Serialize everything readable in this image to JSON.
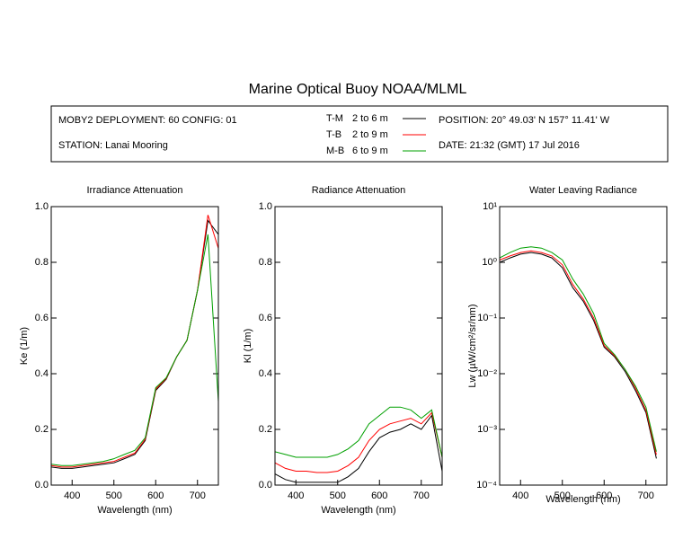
{
  "title": "Marine Optical Buoy NOAA/MLML",
  "info": {
    "deployment": "MOBY2 DEPLOYMENT: 60 CONFIG: 01",
    "station": "STATION: Lanai Mooring",
    "position": "POSITION: 20° 49.03' N   157° 11.41' W",
    "date": "DATE: 21:32 (GMT) 17 Jul 2016"
  },
  "chart_data": [
    {
      "type": "line",
      "title": "Irradiance Attenuation",
      "x_label": "Wavelength (nm)",
      "y_label": "Ke  (1/m)",
      "x": [
        350,
        375,
        400,
        425,
        450,
        475,
        500,
        525,
        550,
        575,
        600,
        625,
        650,
        675,
        700,
        725,
        750
      ],
      "xlim": [
        350,
        750
      ],
      "xticks": [
        400,
        500,
        600,
        700
      ],
      "ylim": [
        0,
        1
      ],
      "yticks": [
        {
          "value": 0,
          "label": "0.0"
        },
        0.2,
        0.4,
        0.6,
        0.8,
        {
          "value": 1,
          "label": "1.0"
        }
      ],
      "series": [
        {
          "name": "T-M",
          "depth": "2 to 6  m",
          "color": "#000000",
          "values": [
            0.065,
            0.06,
            0.06,
            0.065,
            0.07,
            0.075,
            0.08,
            0.095,
            0.11,
            0.16,
            0.34,
            0.38,
            0.46,
            0.52,
            0.7,
            0.95,
            0.9
          ]
        },
        {
          "name": "T-B",
          "depth": "2 to 9  m",
          "color": "#ff0000",
          "values": [
            0.07,
            0.065,
            0.065,
            0.07,
            0.075,
            0.08,
            0.085,
            0.1,
            0.115,
            0.165,
            0.345,
            0.383,
            0.46,
            0.52,
            0.7,
            0.97,
            0.85
          ]
        },
        {
          "name": "M-B",
          "depth": "6 to 9  m",
          "color": "#00a000",
          "values": [
            0.075,
            0.07,
            0.07,
            0.075,
            0.08,
            0.085,
            0.095,
            0.11,
            0.125,
            0.17,
            0.35,
            0.385,
            0.46,
            0.52,
            0.7,
            0.9,
            0.3
          ]
        }
      ]
    },
    {
      "type": "line",
      "title": "Radiance Attenuation",
      "x_label": "Wavelength (nm)",
      "y_label": "Kl  (1/m)",
      "x": [
        350,
        375,
        400,
        425,
        450,
        475,
        500,
        525,
        550,
        575,
        600,
        625,
        650,
        675,
        700,
        725,
        750
      ],
      "xlim": [
        350,
        750
      ],
      "xticks": [
        400,
        500,
        600,
        700
      ],
      "ylim": [
        0,
        1
      ],
      "yticks": [
        {
          "value": 0,
          "label": "0.0"
        },
        0.2,
        0.4,
        0.6,
        0.8,
        {
          "value": 1,
          "label": "1.0"
        }
      ],
      "series": [
        {
          "name": "T-M",
          "color": "#000000",
          "values": [
            0.04,
            0.02,
            0.01,
            0.01,
            0.01,
            0.01,
            0.01,
            0.03,
            0.06,
            0.12,
            0.17,
            0.19,
            0.2,
            0.22,
            0.2,
            0.25,
            0.05
          ]
        },
        {
          "name": "T-B",
          "color": "#ff0000",
          "values": [
            0.08,
            0.06,
            0.05,
            0.05,
            0.045,
            0.045,
            0.05,
            0.07,
            0.1,
            0.16,
            0.2,
            0.22,
            0.23,
            0.24,
            0.22,
            0.26,
            0.1
          ]
        },
        {
          "name": "M-B",
          "color": "#00a000",
          "values": [
            0.12,
            0.11,
            0.1,
            0.1,
            0.1,
            0.1,
            0.11,
            0.13,
            0.16,
            0.22,
            0.25,
            0.28,
            0.28,
            0.27,
            0.24,
            0.27,
            0.1
          ]
        }
      ]
    },
    {
      "type": "line",
      "title": "Water Leaving Radiance",
      "x_label": "Wavelength (nm)",
      "y_label": "Lw  (µW/cm²/sr/nm)",
      "x": [
        350,
        375,
        400,
        425,
        450,
        475,
        500,
        525,
        550,
        575,
        600,
        625,
        650,
        675,
        700,
        725,
        750
      ],
      "xlim": [
        350,
        750
      ],
      "xticks": [
        400,
        500,
        600,
        700
      ],
      "log_scale": true,
      "ylim": [
        0.0001,
        10
      ],
      "yticks": [
        {
          "value": 0.0001,
          "label": "10⁻⁴"
        },
        {
          "value": 0.001,
          "label": "10⁻³"
        },
        {
          "value": 0.01,
          "label": "10⁻²"
        },
        {
          "value": 0.1,
          "label": "10⁻¹"
        },
        {
          "value": 1,
          "label": "10⁰"
        },
        {
          "value": 10,
          "label": "10¹"
        }
      ],
      "series": [
        {
          "name": "T-M",
          "color": "#000000",
          "values": [
            1.0,
            1.2,
            1.4,
            1.5,
            1.4,
            1.2,
            0.8,
            0.35,
            0.2,
            0.09,
            0.03,
            0.02,
            0.011,
            0.005,
            0.002,
            0.0003,
            null
          ]
        },
        {
          "name": "T-B",
          "color": "#ff0000",
          "values": [
            1.1,
            1.3,
            1.5,
            1.6,
            1.5,
            1.3,
            0.9,
            0.4,
            0.22,
            0.1,
            0.032,
            0.021,
            0.012,
            0.0055,
            0.0022,
            0.00035,
            null
          ]
        },
        {
          "name": "M-B",
          "color": "#00a000",
          "values": [
            1.2,
            1.5,
            1.8,
            1.9,
            1.8,
            1.5,
            1.1,
            0.5,
            0.27,
            0.12,
            0.035,
            0.022,
            0.012,
            0.006,
            0.0025,
            0.0004,
            null
          ]
        }
      ]
    }
  ]
}
